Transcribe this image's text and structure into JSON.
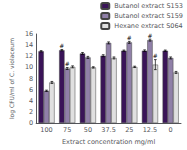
{
  "chart_data": {
    "type": "bar",
    "categories": [
      "100",
      "75",
      "50",
      "37.5",
      "25",
      "12.5",
      "0"
    ],
    "series": [
      {
        "name": "Butanol extract S153",
        "color": "#3a1458",
        "values": [
          12.9,
          13.1,
          12.5,
          12.1,
          13.0,
          13.0,
          13.0
        ],
        "errors": [
          0.12,
          0.12,
          0.18,
          0.18,
          0.12,
          0.15,
          0.12
        ]
      },
      {
        "name": "Butanol extract S159",
        "color": "#9080a8",
        "values": [
          5.8,
          9.8,
          11.8,
          14.4,
          14.5,
          14.9,
          11.7
        ],
        "errors": [
          0.12,
          0.18,
          0.18,
          0.18,
          0.18,
          0.18,
          0.18
        ]
      },
      {
        "name": "Hexane extract S064",
        "color": "#e0e0e0",
        "values": [
          7.3,
          10.1,
          10.0,
          11.7,
          10.1,
          10.5,
          9.1
        ],
        "errors": [
          0.18,
          0.18,
          0.12,
          0.18,
          0.12,
          0.9,
          0.18
        ]
      }
    ],
    "xlabel": "Extract concentration mg/ml",
    "ylabel": "log CFU/ml of C. violaceum",
    "ylim": [
      0,
      16
    ],
    "yticks": [
      0,
      2,
      4,
      6,
      8,
      10,
      12,
      14,
      16
    ],
    "annotations": [
      {
        "text": "#",
        "category": "75",
        "series": "Butanol extract S153"
      },
      {
        "text": "#",
        "category": "75",
        "series": "Butanol extract S159"
      },
      {
        "text": "#",
        "category": "25",
        "series": "Butanol extract S159"
      },
      {
        "text": "#",
        "category": "12.5",
        "series": "Butanol extract S159"
      },
      {
        "text": "#",
        "category": "12.5",
        "series": "Hexane extract S064"
      }
    ],
    "legend": "upper right",
    "grid": false
  }
}
